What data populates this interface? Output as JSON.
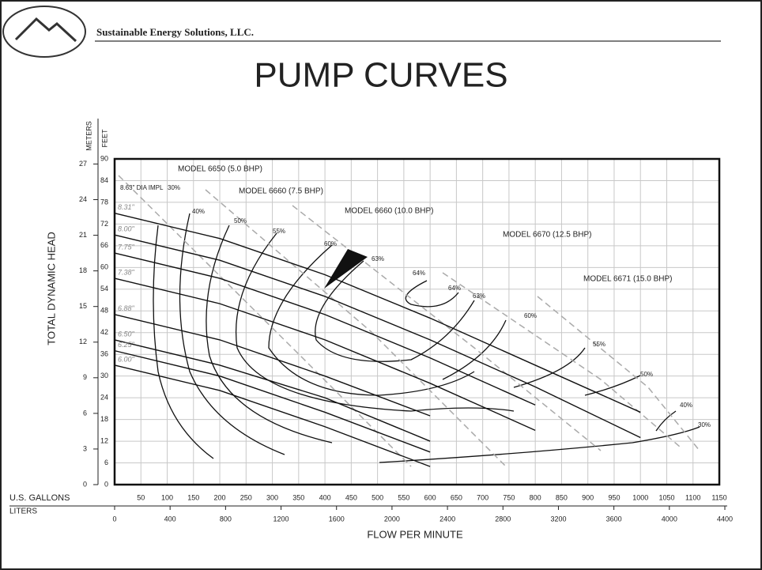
{
  "header": {
    "company": "Sustainable Energy Solutions, LLC.",
    "title": "PUMP CURVES"
  },
  "chart_data": {
    "type": "line",
    "y_label": "TOTAL DYNAMIC HEAD",
    "y_unit": "FEET",
    "y2_unit": "METERS",
    "x_unit": "U.S. GALLONS",
    "x2_unit": "LITERS",
    "x_label": "FLOW PER MINUTE",
    "x": [
      0,
      200,
      400,
      600,
      800,
      1000
    ],
    "series": [
      {
        "name": "8.31\"",
        "color": "#111",
        "values": [
          75,
          68,
          58,
          46,
          33,
          20
        ]
      },
      {
        "name": "8.00\"",
        "color": "#111",
        "values": [
          69,
          62,
          52,
          40,
          27,
          13
        ]
      },
      {
        "name": "7.75\"",
        "color": "#111",
        "values": [
          64,
          57,
          47,
          35,
          22,
          null
        ]
      },
      {
        "name": "7.38\"",
        "color": "#111",
        "values": [
          57,
          50,
          40,
          28,
          15,
          null
        ]
      },
      {
        "name": "6.88\"",
        "color": "#111",
        "values": [
          47,
          40,
          30,
          19,
          null,
          null
        ]
      },
      {
        "name": "6.50\"",
        "color": "#111",
        "values": [
          40,
          33,
          24,
          12,
          null,
          null
        ]
      },
      {
        "name": "6.25\"",
        "color": "#111",
        "values": [
          37,
          30,
          20,
          9,
          null,
          null
        ]
      },
      {
        "name": "6.00\"",
        "color": "#111",
        "values": [
          33,
          26,
          16,
          5,
          null,
          null
        ]
      }
    ],
    "xlim": [
      0,
      1150
    ],
    "xticks": [
      50,
      100,
      150,
      200,
      250,
      300,
      350,
      400,
      450,
      500,
      550,
      600,
      650,
      700,
      750,
      800,
      850,
      900,
      950,
      1000,
      1050,
      1100,
      1150
    ],
    "x2lim": [
      0,
      4400
    ],
    "x2ticks": [
      0,
      400,
      800,
      1200,
      1600,
      2000,
      2400,
      2800,
      3200,
      3600,
      4000,
      4400
    ],
    "ylim": [
      0,
      90
    ],
    "yticks": [
      0,
      6,
      12,
      18,
      24,
      30,
      36,
      42,
      48,
      54,
      60,
      66,
      72,
      78,
      84,
      90
    ],
    "y2lim": [
      0,
      27.43
    ],
    "y2ticks": [
      0,
      3,
      6,
      9,
      12,
      15,
      18,
      21,
      24,
      27
    ],
    "grid": true,
    "annotations": [
      "MODEL 6650 (5.0 BHP)",
      "MODEL 6660 (7.5 BHP)",
      "MODEL 6660 (10.0 BHP)",
      "MODEL 6670 (12.5 BHP)",
      "MODEL 6671 (15.0 BHP)",
      "8.63\" DIA IMPL",
      "30%",
      "40%",
      "50%",
      "55%",
      "60%",
      "63%",
      "64%",
      "64%",
      "63%",
      "60%",
      "55%",
      "50%",
      "40%",
      "30%"
    ]
  }
}
